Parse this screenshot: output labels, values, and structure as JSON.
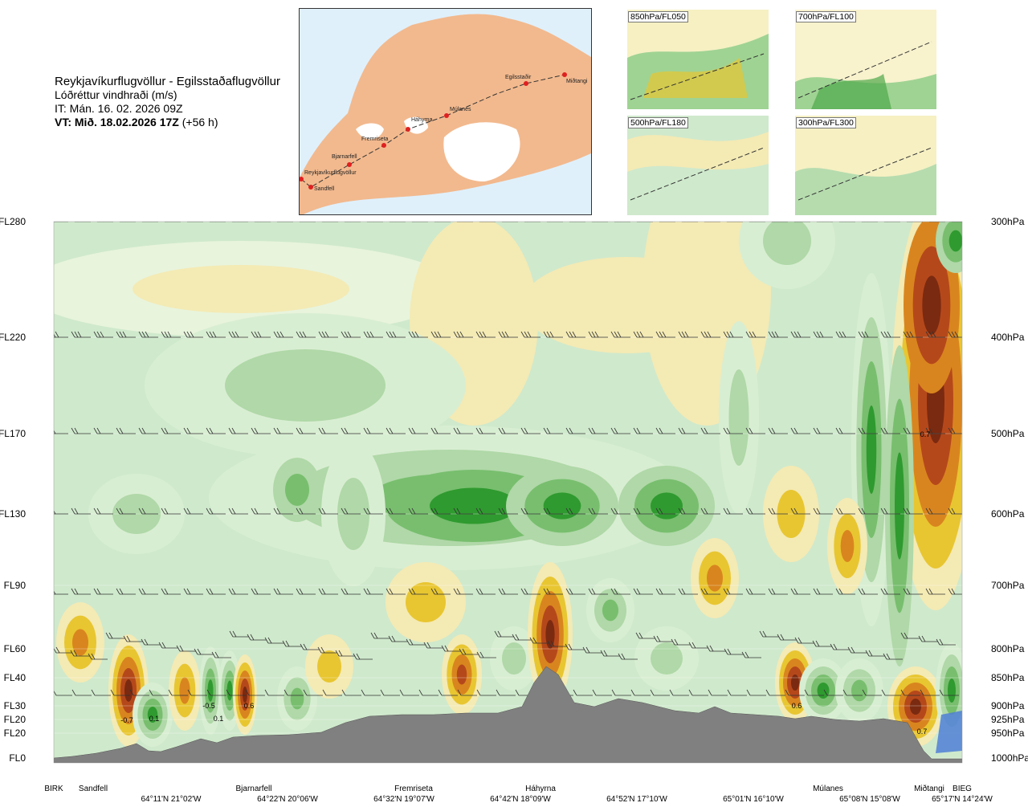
{
  "header": {
    "title": "Reykjavíkurflugvöllur - Egilsstaðaflugvöllur",
    "subtitle": "Lóðréttur vindhraði (m/s)",
    "it_line": "IT: Mán. 16. 02. 2026 09Z",
    "vt_bold": "VT: Mið. 18.02.2026 17Z",
    "vt_suffix": "(+56 h)"
  },
  "map": {
    "stations": [
      "Reykjavíkurflugvöllur",
      "Sandfell",
      "Bjarnarfell",
      "Fremriseta",
      "Háhyrna",
      "Múlanes",
      "Egilsstaðir",
      "Miðtangi"
    ],
    "colors": {
      "land": "#f2b98e",
      "water": "#dff0fb",
      "glacier": "#ffffff",
      "route": "#333333",
      "station": "#e02020"
    }
  },
  "mini_maps": [
    {
      "label": "850hPa/FL050"
    },
    {
      "label": "700hPa/FL100"
    },
    {
      "label": "500hPa/FL180"
    },
    {
      "label": "300hPa/FL300"
    }
  ],
  "chart_data": {
    "type": "heatmap",
    "variable": "Lóðréttur vindhraði (m/s)",
    "levels": [
      {
        "fl": "FL280",
        "hpa": "300hPa"
      },
      {
        "fl": "FL220",
        "hpa": "400hPa"
      },
      {
        "fl": "FL170",
        "hpa": "500hPa"
      },
      {
        "fl": "FL130",
        "hpa": "600hPa"
      },
      {
        "fl": "FL90",
        "hpa": "700hPa"
      },
      {
        "fl": "FL60",
        "hpa": "800hPa"
      },
      {
        "fl": "FL40",
        "hpa": "850hPa"
      },
      {
        "fl": "FL30",
        "hpa": "900hPa"
      },
      {
        "fl": "FL20",
        "hpa": "925hPa"
      },
      {
        "fl": "FL20",
        "hpa": "950hPa"
      },
      {
        "fl": "FL0",
        "hpa": "1000hPa"
      }
    ],
    "stations": [
      "BIRK",
      "Sandfell",
      "Bjarnarfell",
      "Fremriseta",
      "Háhyrna",
      "Múlanes",
      "Miðtangi",
      "BIEG"
    ],
    "coordinates": [
      "64°11'N 21°02'W",
      "64°22'N 20°06'W",
      "64°32'N 19°07'W",
      "64°42'N 18°09'W",
      "64°52'N 17°10'W",
      "65°01'N 16°10'W",
      "65°08'N 15°08'W",
      "65°17'N 14°24'W"
    ],
    "contour_labels": [
      "-0.7",
      "0.1",
      "-0.5",
      "0.1",
      "0.6",
      "0.6",
      "0.7",
      "0.7"
    ],
    "colors": {
      "strong_up": "#7a2a10",
      "up3": "#b5481b",
      "up2": "#d9851f",
      "up1": "#e8c631",
      "weak_up": "#f4eab4",
      "weak_down": "#d8eed2",
      "down1": "#b0d8a8",
      "down2": "#78be6e",
      "strong_down": "#2f9a2f",
      "terrain": "#808080",
      "sea": "#4f7fd6",
      "background": "#cfe9cc"
    }
  }
}
